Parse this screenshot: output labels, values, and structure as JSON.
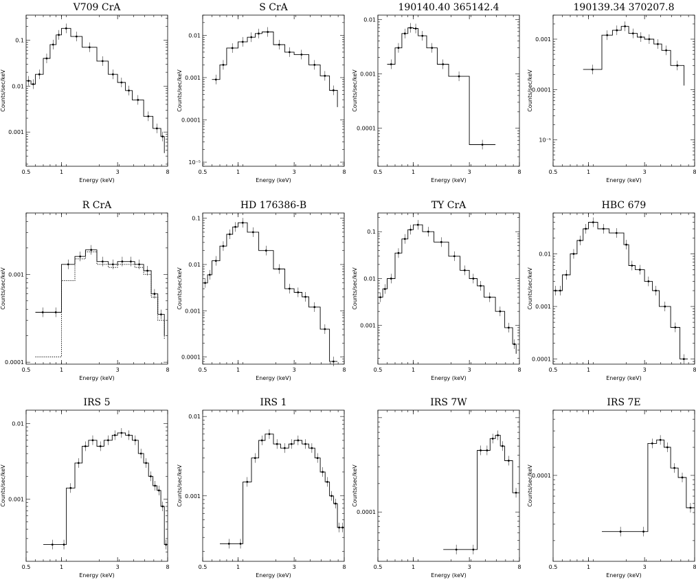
{
  "figure": {
    "xlabel": "Energy (keV)",
    "ylabel": "Counts/sec/keV"
  },
  "chart_data": [
    {
      "type": "line",
      "title": "V709 CrA",
      "xlabel": "Energy (keV)",
      "ylabel": "Counts/sec/keV",
      "xscale": "log",
      "yscale": "log",
      "xlim": [
        0.5,
        8
      ],
      "ylim": [
        0.00018,
        0.35
      ],
      "xticks": [
        "0.5",
        "1",
        "3",
        "8"
      ],
      "yticks": [
        "0.1",
        "0.01",
        "0.001"
      ],
      "series": [
        {
          "name": "",
          "x": [
            0.5,
            0.55,
            0.6,
            0.7,
            0.8,
            0.9,
            1.0,
            1.2,
            1.5,
            2.0,
            2.5,
            3.0,
            3.5,
            4.0,
            5.0,
            6.0,
            7.0,
            7.5
          ],
          "y": [
            0.013,
            0.011,
            0.018,
            0.04,
            0.08,
            0.13,
            0.18,
            0.12,
            0.07,
            0.035,
            0.018,
            0.012,
            0.008,
            0.005,
            0.0022,
            0.0012,
            0.0008,
            0.00035
          ]
        }
      ]
    },
    {
      "type": "line",
      "title": "S CrA",
      "xlabel": "Energy (keV)",
      "ylabel": "Counts/sec/keV",
      "xscale": "log",
      "yscale": "log",
      "xlim": [
        0.5,
        8
      ],
      "ylim": [
        8e-06,
        0.03
      ],
      "xticks": [
        "0.5",
        "1",
        "3",
        "8"
      ],
      "yticks": [
        "0.01",
        "0.001",
        "0.0001",
        "10⁻⁵"
      ],
      "series": [
        {
          "name": "",
          "x": [
            0.6,
            0.7,
            0.8,
            1.0,
            1.2,
            1.4,
            1.6,
            2.0,
            2.5,
            3.0,
            4.0,
            5.0,
            6.0,
            7.0
          ],
          "y": [
            0.0009,
            0.002,
            0.005,
            0.007,
            0.009,
            0.011,
            0.012,
            0.006,
            0.004,
            0.0035,
            0.002,
            0.0011,
            0.0005,
            0.0002
          ]
        }
      ]
    },
    {
      "type": "line",
      "title": "190140.40 365142.4",
      "xlabel": "Energy (keV)",
      "ylabel": "Counts/sec/keV",
      "xscale": "log",
      "yscale": "log",
      "xlim": [
        0.5,
        8
      ],
      "ylim": [
        2e-05,
        0.012
      ],
      "xticks": [
        "0.5",
        "1",
        "3",
        "8"
      ],
      "yticks": [
        "0.01",
        "0.001",
        "0.0001"
      ],
      "series": [
        {
          "name": "",
          "x": [
            0.6,
            0.7,
            0.8,
            0.9,
            1.0,
            1.1,
            1.3,
            1.6,
            2.0,
            3.0,
            5.0
          ],
          "y": [
            0.0015,
            0.003,
            0.0055,
            0.007,
            0.0068,
            0.005,
            0.003,
            0.0015,
            0.0009,
            5e-05,
            5e-05
          ]
        }
      ]
    },
    {
      "type": "line",
      "title": "190139.34 370207.8",
      "xlabel": "Energy (keV)",
      "ylabel": "Counts/sec/keV",
      "xscale": "log",
      "yscale": "log",
      "xlim": [
        0.5,
        8
      ],
      "ylim": [
        3e-06,
        0.003
      ],
      "xticks": [
        "0.5",
        "1",
        "3",
        "8"
      ],
      "yticks": [
        "0.001",
        "0.0001",
        "10⁻⁵"
      ],
      "series": [
        {
          "name": "",
          "x": [
            0.9,
            1.3,
            1.6,
            1.9,
            2.2,
            2.6,
            3.0,
            3.6,
            4.2,
            5.0,
            6.5
          ],
          "y": [
            0.00025,
            0.0012,
            0.0015,
            0.0018,
            0.0013,
            0.0011,
            0.001,
            0.0008,
            0.0006,
            0.0003,
            0.00012
          ]
        }
      ]
    },
    {
      "type": "line",
      "title": "R CrA",
      "xlabel": "Energy (keV)",
      "ylabel": "Counts/sec/keV",
      "xscale": "log",
      "yscale": "log",
      "xlim": [
        0.5,
        8
      ],
      "ylim": [
        9.5e-05,
        0.005
      ],
      "xticks": [
        "0.5",
        "1",
        "3",
        "8"
      ],
      "yticks": [
        "0.001",
        "0.0001"
      ],
      "series": [
        {
          "name": "",
          "x": [
            0.6,
            0.8,
            1.0,
            1.3,
            1.6,
            2.0,
            2.5,
            3.0,
            3.6,
            4.2,
            5.0,
            5.8,
            6.6,
            7.5
          ],
          "y": [
            0.00037,
            0.00037,
            0.0013,
            0.0016,
            0.0019,
            0.0014,
            0.0013,
            0.0014,
            0.0014,
            0.0013,
            0.0011,
            0.0006,
            0.00035,
            0.0002
          ]
        },
        {
          "name": "",
          "x": [
            0.6,
            0.8,
            1.0,
            1.3,
            1.6,
            2.0,
            2.5,
            3.0,
            3.6,
            4.2,
            5.0,
            5.8,
            6.6,
            7.5
          ],
          "y": [
            0.000115,
            0.000115,
            0.00085,
            0.0015,
            0.0018,
            0.0013,
            0.0012,
            0.0013,
            0.0013,
            0.0012,
            0.001,
            0.00055,
            0.0003,
            0.00018
          ],
          "dashed": true
        }
      ]
    },
    {
      "type": "line",
      "title": "HD 176386-B",
      "xlabel": "Energy (keV)",
      "ylabel": "Counts/sec/keV",
      "xscale": "log",
      "yscale": "log",
      "xlim": [
        0.5,
        8
      ],
      "ylim": [
        7e-05,
        0.13
      ],
      "xticks": [
        "0.5",
        "1",
        "3",
        "8"
      ],
      "yticks": [
        "0.1",
        "0.01",
        "0.001",
        "0.0001"
      ],
      "series": [
        {
          "name": "",
          "x": [
            0.5,
            0.55,
            0.6,
            0.7,
            0.8,
            0.9,
            1.0,
            1.2,
            1.5,
            2.0,
            2.5,
            3.0,
            3.5,
            4.0,
            5.0,
            6.0,
            7.0
          ],
          "y": [
            0.004,
            0.006,
            0.012,
            0.025,
            0.045,
            0.065,
            0.08,
            0.05,
            0.02,
            0.008,
            0.003,
            0.0025,
            0.002,
            0.0012,
            0.0004,
            8e-05,
            8e-05
          ]
        }
      ]
    },
    {
      "type": "line",
      "title": "TY CrA",
      "xlabel": "Energy (keV)",
      "ylabel": "Counts/sec/keV",
      "xscale": "log",
      "yscale": "log",
      "xlim": [
        0.5,
        8
      ],
      "ylim": [
        0.00015,
        0.25
      ],
      "xticks": [
        "0.5",
        "1",
        "3",
        "8"
      ],
      "yticks": [
        "0.1",
        "0.01",
        "0.001"
      ],
      "series": [
        {
          "name": "",
          "x": [
            0.5,
            0.55,
            0.6,
            0.7,
            0.8,
            0.9,
            1.0,
            1.2,
            1.5,
            2.0,
            2.5,
            3.0,
            3.5,
            4.0,
            5.0,
            6.0,
            7.0,
            7.5
          ],
          "y": [
            0.004,
            0.006,
            0.01,
            0.035,
            0.07,
            0.11,
            0.14,
            0.1,
            0.06,
            0.03,
            0.015,
            0.01,
            0.007,
            0.004,
            0.002,
            0.0009,
            0.0004,
            0.00025
          ]
        }
      ]
    },
    {
      "type": "line",
      "title": "HBC 679",
      "xlabel": "Energy (keV)",
      "ylabel": "Counts/sec/keV",
      "xscale": "log",
      "yscale": "log",
      "xlim": [
        0.5,
        8
      ],
      "ylim": [
        8e-05,
        0.06
      ],
      "xticks": [
        "0.5",
        "1",
        "3",
        "8"
      ],
      "yticks": [
        "0.01",
        "0.001",
        "0.0001"
      ],
      "series": [
        {
          "name": "",
          "x": [
            0.5,
            0.55,
            0.6,
            0.7,
            0.8,
            0.9,
            1.0,
            1.2,
            1.5,
            2.0,
            2.2,
            2.5,
            3.0,
            3.5,
            4.0,
            5.0,
            6.0,
            7.0
          ],
          "y": [
            0.002,
            0.002,
            0.004,
            0.01,
            0.018,
            0.03,
            0.04,
            0.03,
            0.025,
            0.015,
            0.006,
            0.005,
            0.003,
            0.002,
            0.001,
            0.0004,
            0.0001,
            0.0001
          ]
        }
      ]
    },
    {
      "type": "line",
      "title": "IRS 5",
      "xlabel": "Energy (keV)",
      "ylabel": "Counts/sec/keV",
      "xscale": "log",
      "yscale": "log",
      "xlim": [
        0.5,
        8
      ],
      "ylim": [
        0.00015,
        0.015
      ],
      "xticks": [
        "0.5",
        "1",
        "3",
        "8"
      ],
      "yticks": [
        "0.01",
        "0.001"
      ],
      "series": [
        {
          "name": "",
          "x": [
            0.7,
            1.0,
            1.1,
            1.3,
            1.5,
            1.7,
            2.0,
            2.3,
            2.7,
            3.0,
            3.5,
            4.0,
            4.5,
            5.0,
            5.5,
            6.0,
            6.5,
            7.0,
            7.5,
            8.0
          ],
          "y": [
            0.00025,
            0.00025,
            0.0014,
            0.003,
            0.005,
            0.006,
            0.005,
            0.006,
            0.007,
            0.0075,
            0.007,
            0.006,
            0.004,
            0.003,
            0.002,
            0.0015,
            0.0013,
            0.0008,
            0.00025,
            0.00025
          ]
        }
      ]
    },
    {
      "type": "line",
      "title": "IRS 1",
      "xlabel": "Energy (keV)",
      "ylabel": "Counts/sec/keV",
      "xscale": "log",
      "yscale": "log",
      "xlim": [
        0.5,
        8
      ],
      "ylim": [
        0.00015,
        0.012
      ],
      "xticks": [
        "0.5",
        "1",
        "3",
        "8"
      ],
      "yticks": [
        "0.01",
        "0.001"
      ],
      "series": [
        {
          "name": "",
          "x": [
            0.7,
            1.0,
            1.1,
            1.3,
            1.5,
            1.7,
            2.0,
            2.3,
            2.7,
            3.0,
            3.5,
            4.0,
            4.5,
            5.0,
            5.5,
            6.0,
            6.5,
            7.0,
            7.5,
            8.0
          ],
          "y": [
            0.00025,
            0.00025,
            0.0015,
            0.003,
            0.005,
            0.006,
            0.0045,
            0.004,
            0.0045,
            0.005,
            0.0045,
            0.004,
            0.003,
            0.002,
            0.0015,
            0.001,
            0.0008,
            0.0004,
            0.0004,
            0.0004
          ]
        }
      ]
    },
    {
      "type": "line",
      "title": "IRS 7W",
      "xlabel": "Energy (keV)",
      "ylabel": "Counts/sec/keV",
      "xscale": "log",
      "yscale": "log",
      "xlim": [
        0.5,
        8
      ],
      "ylim": [
        3e-05,
        0.0012
      ],
      "xticks": [
        "0.5",
        "1",
        "3",
        "8"
      ],
      "yticks": [
        "0.0001"
      ],
      "series": [
        {
          "name": "",
          "x": [
            1.8,
            3.0,
            3.5,
            4.0,
            4.5,
            5.0,
            5.5,
            6.0,
            7.0,
            8.0
          ],
          "y": [
            4e-05,
            4e-05,
            0.00045,
            0.00045,
            0.0006,
            0.00065,
            0.0005,
            0.00035,
            0.00016,
            0.00016
          ]
        }
      ]
    },
    {
      "type": "line",
      "title": "IRS 7E",
      "xlabel": "Energy (keV)",
      "ylabel": "Counts/sec/keV",
      "xscale": "log",
      "yscale": "log",
      "xlim": [
        0.5,
        8
      ],
      "ylim": [
        1.2e-05,
        0.0005
      ],
      "xticks": [
        "0.5",
        "1",
        "3",
        "8"
      ],
      "yticks": [
        "0.0001"
      ],
      "series": [
        {
          "name": "",
          "x": [
            1.3,
            2.7,
            3.2,
            3.8,
            4.4,
            5.0,
            5.8,
            6.8,
            8.0
          ],
          "y": [
            2.5e-05,
            2.5e-05,
            0.00022,
            0.00024,
            0.0002,
            0.00012,
            9.5e-05,
            4.5e-05,
            4.5e-05
          ]
        }
      ]
    }
  ]
}
